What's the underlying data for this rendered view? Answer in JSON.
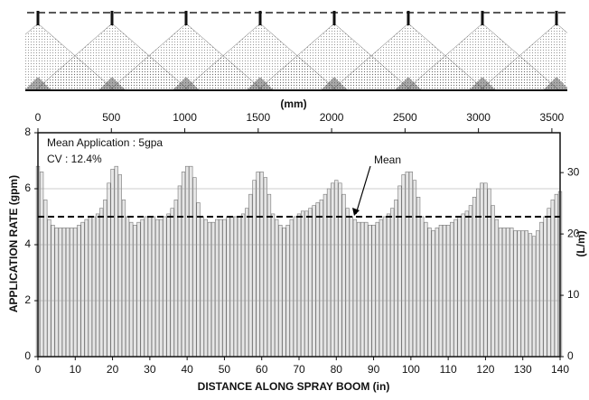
{
  "chart_data": {
    "type": "bar",
    "xlabel": "DISTANCE ALONG SPRAY BOOM (in)",
    "ylabel": "APPLICATION RATE (gpm)",
    "y2label": "(L/m)",
    "x2label": "(mm)",
    "annotations": [
      "Mean Application : 5gpa",
      "CV : 12.4%",
      "Mean"
    ],
    "mean": 5,
    "x": [
      0,
      1,
      2,
      3,
      4,
      5,
      6,
      7,
      8,
      9,
      10,
      11,
      12,
      13,
      14,
      15,
      16,
      17,
      18,
      19,
      20,
      21,
      22,
      23,
      24,
      25,
      26,
      27,
      28,
      29,
      30,
      31,
      32,
      33,
      34,
      35,
      36,
      37,
      38,
      39,
      40,
      41,
      42,
      43,
      44,
      45,
      46,
      47,
      48,
      49,
      50,
      51,
      52,
      53,
      54,
      55,
      56,
      57,
      58,
      59,
      60,
      61,
      62,
      63,
      64,
      65,
      66,
      67,
      68,
      69,
      70,
      71,
      72,
      73,
      74,
      75,
      76,
      77,
      78,
      79,
      80,
      81,
      82,
      83,
      84,
      85,
      86,
      87,
      88,
      89,
      90,
      91,
      92,
      93,
      94,
      95,
      96,
      97,
      98,
      99,
      100,
      101,
      102,
      103,
      104,
      105,
      106,
      107,
      108,
      109,
      110,
      111,
      112,
      113,
      114,
      115,
      116,
      117,
      118,
      119,
      120,
      121,
      122,
      123,
      124,
      125,
      126,
      127,
      128,
      129,
      130,
      131,
      132,
      133,
      134,
      135,
      136,
      137,
      138,
      139,
      140
    ],
    "values": [
      6.8,
      6.6,
      5.6,
      4.9,
      4.7,
      4.6,
      4.6,
      4.6,
      4.6,
      4.6,
      4.6,
      4.7,
      4.8,
      4.9,
      5.0,
      5.0,
      5.1,
      5.3,
      5.6,
      6.2,
      6.7,
      6.8,
      6.5,
      5.6,
      5.0,
      4.8,
      4.7,
      4.8,
      4.9,
      5.0,
      5.0,
      5.0,
      4.9,
      4.9,
      5.0,
      5.1,
      5.3,
      5.6,
      6.1,
      6.6,
      6.8,
      6.8,
      6.4,
      5.5,
      5.0,
      4.9,
      4.8,
      4.8,
      4.9,
      4.9,
      4.9,
      5.0,
      5.0,
      5.0,
      5.0,
      5.1,
      5.3,
      5.8,
      6.3,
      6.6,
      6.6,
      6.4,
      5.8,
      5.1,
      4.9,
      4.7,
      4.6,
      4.7,
      4.9,
      5.0,
      5.1,
      5.2,
      5.2,
      5.3,
      5.4,
      5.5,
      5.6,
      5.8,
      6.0,
      6.2,
      6.3,
      6.2,
      5.8,
      5.3,
      5.0,
      4.9,
      4.8,
      4.8,
      4.8,
      4.7,
      4.7,
      4.8,
      4.9,
      5.0,
      5.1,
      5.3,
      5.6,
      6.1,
      6.5,
      6.6,
      6.6,
      6.3,
      5.7,
      5.0,
      4.8,
      4.6,
      4.5,
      4.6,
      4.7,
      4.7,
      4.7,
      4.8,
      4.9,
      5.0,
      5.1,
      5.2,
      5.4,
      5.7,
      6.0,
      6.2,
      6.2,
      6.0,
      5.4,
      4.9,
      4.6,
      4.6,
      4.6,
      4.6,
      4.5,
      4.5,
      4.5,
      4.5,
      4.4,
      4.3,
      4.5,
      4.8,
      5.0,
      5.3,
      5.6,
      5.8,
      5.9
    ],
    "color": "#e6e6e6",
    "xlim": [
      0,
      140
    ],
    "xticks": [
      0,
      10,
      20,
      30,
      40,
      50,
      60,
      70,
      80,
      90,
      100,
      110,
      120,
      130,
      140
    ],
    "x2lim": [
      0,
      3556
    ],
    "x2ticks": [
      0,
      500,
      1000,
      1500,
      2000,
      2500,
      3000,
      3500
    ],
    "ylim": [
      0,
      8
    ],
    "yticks": [
      0,
      2,
      4,
      6,
      8
    ],
    "y2lim": [
      0,
      36.5
    ],
    "y2ticks": [
      0,
      10,
      20,
      30
    ],
    "grid": true
  }
}
